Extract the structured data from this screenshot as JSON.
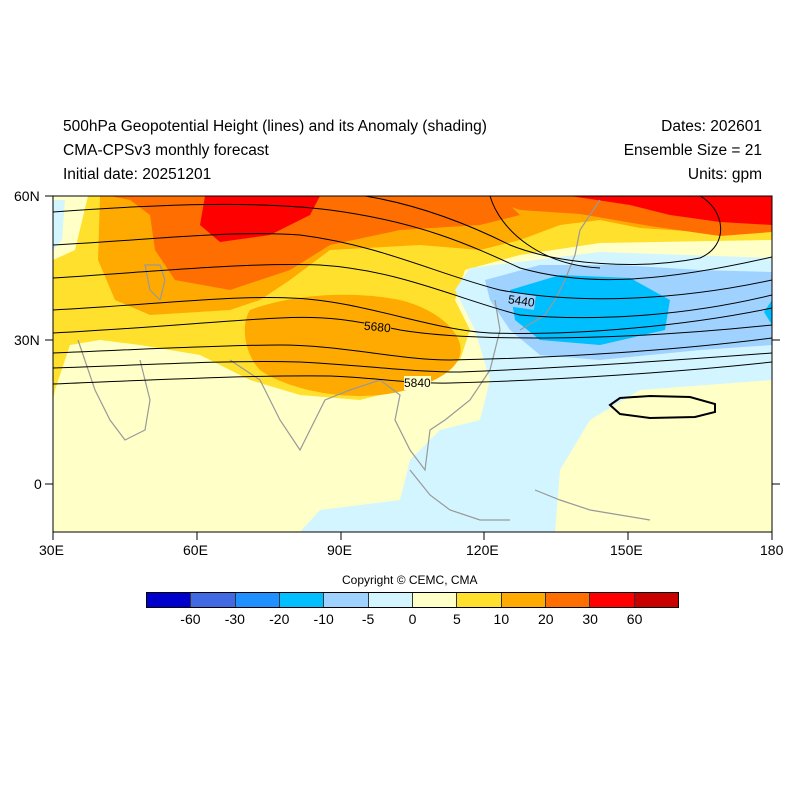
{
  "header": {
    "title": "500hPa Geopotential Height (lines) and its Anomaly (shading)",
    "subtitle": "CMA-CPSv3 monthly forecast",
    "initial_date": "Initial date: 20251201",
    "dates": "Dates: 202601",
    "ensemble": "Ensemble Size = 21",
    "units": "Units: gpm"
  },
  "map": {
    "lat_labels": [
      "60N",
      "30N",
      "0"
    ],
    "lon_labels": [
      "30E",
      "60E",
      "90E",
      "120E",
      "150E",
      "180"
    ],
    "contour_labels": [
      "5440",
      "5680",
      "5840"
    ]
  },
  "copyright": "Copyright © CEMC, CMA",
  "colorbar": {
    "labels": [
      "-60",
      "-30",
      "-20",
      "-10",
      "-5",
      "0",
      "5",
      "10",
      "20",
      "30",
      "60"
    ],
    "colors": [
      "#0000CD",
      "#4169E1",
      "#1E90FF",
      "#00BFFF",
      "#A0D2FF",
      "#D2F5FF",
      "#FFFFC8",
      "#FFE12D",
      "#FFAA00",
      "#FF6E00",
      "#FF0000",
      "#C80000"
    ]
  }
}
